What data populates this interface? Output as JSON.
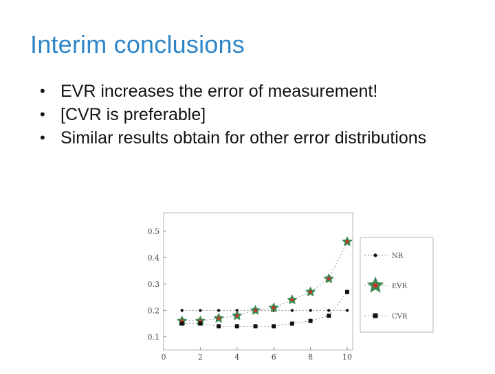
{
  "slide": {
    "title": "Interim conclusions",
    "bullets": [
      "EVR increases the error of measurement!",
      "[CVR is preferable]",
      "Similar results obtain for other error distributions"
    ]
  },
  "chart_data": {
    "type": "line",
    "x": [
      1,
      2,
      3,
      4,
      5,
      6,
      7,
      8,
      9,
      10
    ],
    "series": [
      {
        "name": "NR",
        "marker": "dot",
        "color": "#111111",
        "values": [
          0.2,
          0.2,
          0.2,
          0.2,
          0.2,
          0.2,
          0.2,
          0.2,
          0.2,
          0.2
        ]
      },
      {
        "name": "EVR",
        "marker": "star",
        "color": "#3a8a52",
        "inner_color": "#c0392b",
        "values": [
          0.16,
          0.16,
          0.17,
          0.18,
          0.2,
          0.21,
          0.24,
          0.27,
          0.32,
          0.46
        ]
      },
      {
        "name": "CVR",
        "marker": "square",
        "color": "#111111",
        "values": [
          0.15,
          0.15,
          0.14,
          0.14,
          0.14,
          0.14,
          0.15,
          0.16,
          0.18,
          0.27
        ]
      }
    ],
    "xticks": [
      "0",
      "2",
      "4",
      "6",
      "8",
      "10"
    ],
    "yticks": [
      "0.1",
      "0.2",
      "0.3",
      "0.4",
      "0.5"
    ],
    "xlim": [
      0,
      10.3
    ],
    "ylim": [
      0.05,
      0.57
    ],
    "grid": false,
    "legend_position": "right"
  }
}
